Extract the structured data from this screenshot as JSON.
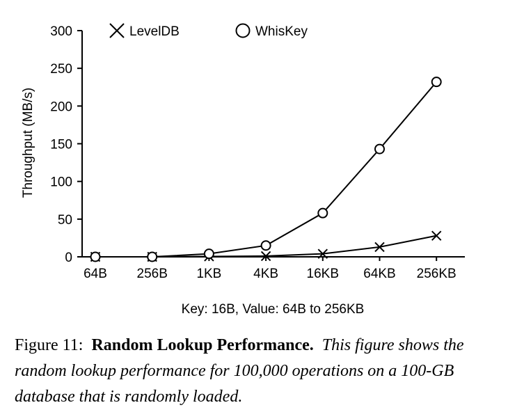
{
  "chart_data": {
    "type": "line",
    "categories": [
      "64B",
      "256B",
      "1KB",
      "4KB",
      "16KB",
      "64KB",
      "256KB"
    ],
    "series": [
      {
        "name": "LevelDB",
        "marker": "x",
        "values": [
          0,
          0,
          0.5,
          1,
          4,
          13,
          28
        ]
      },
      {
        "name": "WhisKey",
        "marker": "circle",
        "values": [
          0,
          0,
          4,
          15,
          58,
          143,
          232
        ]
      }
    ],
    "xlabel": "Key: 16B, Value: 64B to 256KB",
    "ylabel": "Throughput (MB/s)",
    "ylim": [
      0,
      300
    ],
    "yticks": [
      0,
      50,
      100,
      150,
      200,
      250,
      300
    ],
    "grid": false,
    "legend_position": "top"
  },
  "caption": {
    "figure_number": "Figure 11:",
    "title": "Random Lookup Performance.",
    "text": "This figure shows the random lookup performance for 100,000 operations on a 100-GB database that is randomly loaded."
  },
  "colors": {
    "ink": "#000000",
    "background": "#ffffff"
  }
}
